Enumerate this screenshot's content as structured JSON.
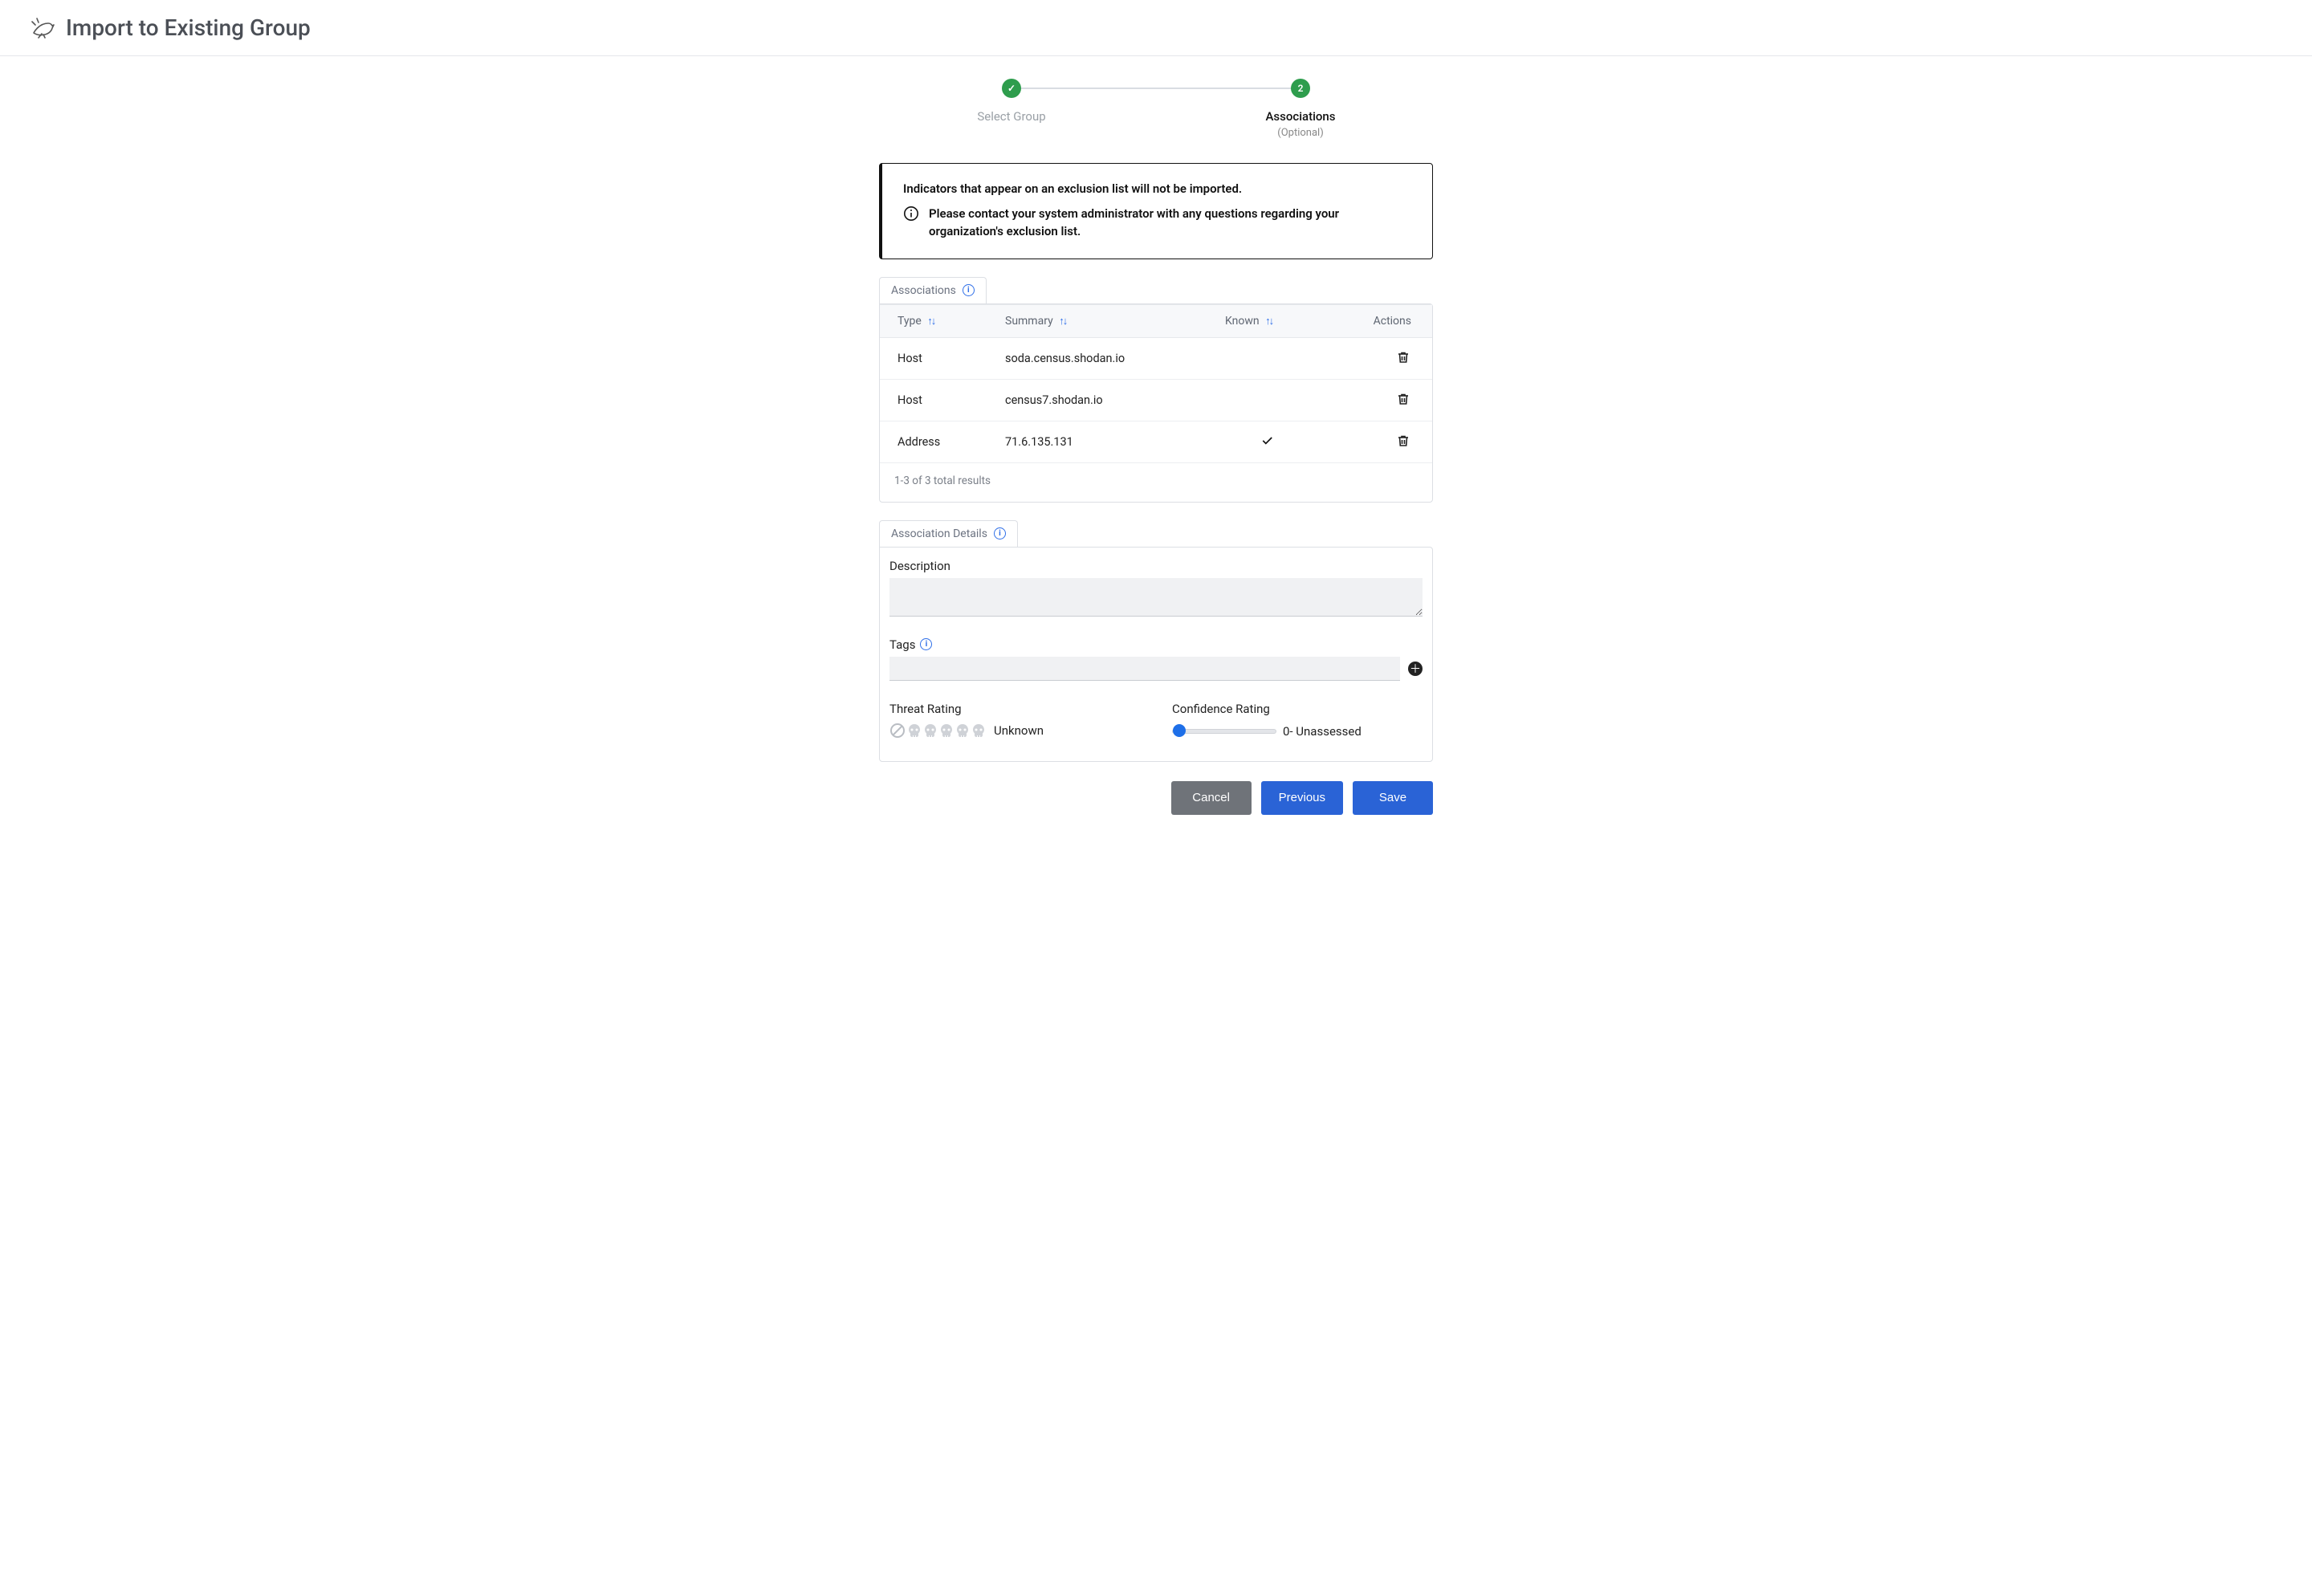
{
  "header": {
    "title": "Import to Existing Group"
  },
  "stepper": {
    "steps": [
      {
        "label": "Select Group",
        "badge": "✓",
        "sub": ""
      },
      {
        "label": "Associations",
        "badge": "2",
        "sub": "(Optional)"
      }
    ],
    "active_index": 1
  },
  "notice": {
    "title": "Indicators that appear on an exclusion list will not be imported.",
    "body": "Please contact your system administrator with any questions regarding your organization's exclusion list."
  },
  "associations_tab": {
    "label": "Associations"
  },
  "table": {
    "columns": {
      "type": "Type",
      "summary": "Summary",
      "known": "Known",
      "actions": "Actions"
    },
    "rows": [
      {
        "type": "Host",
        "summary": "soda.census.shodan.io",
        "known": false
      },
      {
        "type": "Host",
        "summary": "census7.shodan.io",
        "known": false
      },
      {
        "type": "Address",
        "summary": "71.6.135.131",
        "known": true
      }
    ],
    "footer": "1-3 of 3 total results"
  },
  "details_tab": {
    "label": "Association Details"
  },
  "details": {
    "description_label": "Description",
    "description_value": "",
    "tags_label": "Tags",
    "tags_value": "",
    "threat_label": "Threat Rating",
    "threat_text": "Unknown",
    "confidence_label": "Confidence Rating",
    "confidence_value": 0,
    "confidence_text": "0- Unassessed"
  },
  "buttons": {
    "cancel": "Cancel",
    "previous": "Previous",
    "save": "Save"
  },
  "colors": {
    "accent_green": "#2e9d4d",
    "accent_blue": "#2a63d6",
    "info_blue": "#2f6fe8",
    "border": "#dcdfe4",
    "muted_text": "#6b7280"
  }
}
